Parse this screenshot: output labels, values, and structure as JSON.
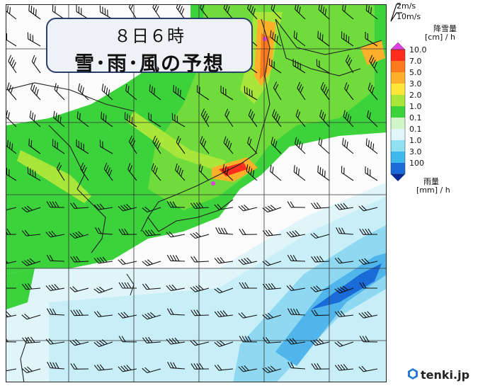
{
  "title": {
    "line1": "８日６時",
    "line2": "雪･雨･風の予想"
  },
  "legend": {
    "wind_labels": [
      "2m/s",
      "10m/s"
    ],
    "snow_unit_top": "降雪量",
    "snow_unit_bottom": "[cm] / h",
    "snow_ticks": [
      "10.0",
      "7.0",
      "5.0",
      "3.0",
      "2.0",
      "1.0",
      "0.1"
    ],
    "rain_ticks": [
      "0.1",
      "1.0",
      "3.0",
      "100"
    ],
    "rain_unit_top": "雨量",
    "rain_unit_bottom": "[mm] / h",
    "snow_colors": [
      "#e040e0",
      "#ff2d1e",
      "#ff7a1e",
      "#ffb02a",
      "#ffe63a",
      "#a8e63a",
      "#3cd23c",
      "#d2f5c8"
    ],
    "rain_colors": [
      "#e0f6fa",
      "#8fe0f0",
      "#3fb8ee",
      "#1a6ad8",
      "#0a2a9a"
    ]
  },
  "branding": {
    "name": "tenki.jp"
  }
}
